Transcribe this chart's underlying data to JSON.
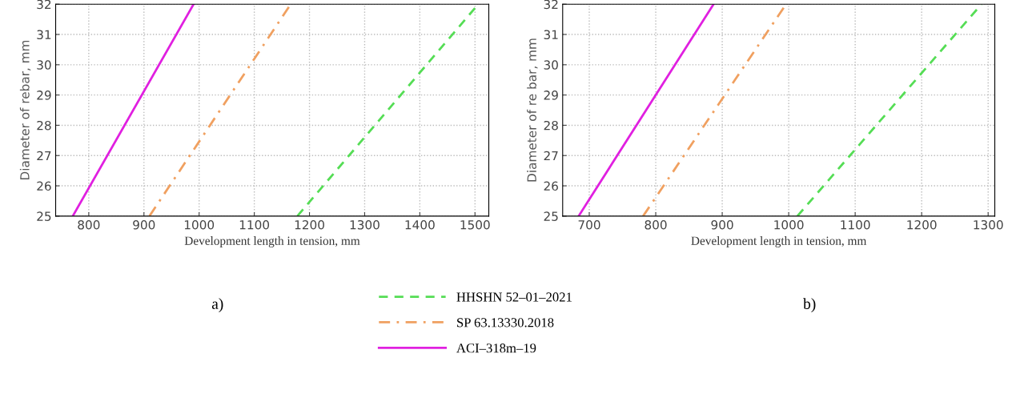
{
  "chart_data": [
    {
      "type": "line",
      "xlabel": "Development length in tension, mm",
      "ylabel": "Diameter of rebar, mm",
      "xlim": [
        740,
        1525
      ],
      "xticks": [
        800,
        900,
        1000,
        1100,
        1200,
        1300,
        1400,
        1500
      ],
      "ylim": [
        25,
        32
      ],
      "yticks": [
        25,
        26,
        27,
        28,
        29,
        30,
        31,
        32
      ],
      "grid": true,
      "legend": "bottom",
      "annotations": [
        "a)"
      ],
      "series": [
        {
          "name": "HHSHN 52–01–2021",
          "color": "#55dd55",
          "line_style": "dashed",
          "x": [
            1178,
            1506
          ],
          "values": [
            25,
            32
          ]
        },
        {
          "name": "SP 63.13330.2018",
          "color": "#f0a060",
          "line_style": "dashdot",
          "x": [
            910,
            1166
          ],
          "values": [
            25,
            32
          ]
        },
        {
          "name": "ACI–318m–19",
          "color": "#e020e0",
          "line_style": "solid",
          "x": [
            771,
            990
          ],
          "values": [
            25,
            32
          ]
        }
      ]
    },
    {
      "type": "line",
      "xlabel": "Development length in tension, mm",
      "ylabel": "Diameter of re bar, mm",
      "xlim": [
        660,
        1310
      ],
      "xticks": [
        700,
        800,
        900,
        1000,
        1100,
        1200,
        1300
      ],
      "ylim": [
        25,
        32
      ],
      "yticks": [
        25,
        26,
        27,
        28,
        29,
        30,
        31,
        32
      ],
      "grid": true,
      "annotations": [
        "b)"
      ],
      "series": [
        {
          "color": "#55dd55",
          "line_style": "dashed",
          "x": [
            1013,
            1290
          ],
          "values": [
            25,
            32
          ]
        },
        {
          "color": "#f0a060",
          "line_style": "dashdot",
          "x": [
            781,
            996
          ],
          "values": [
            25,
            32
          ]
        },
        {
          "color": "#e020e0",
          "line_style": "solid",
          "x": [
            684,
            887
          ],
          "values": [
            25,
            32
          ]
        }
      ]
    }
  ]
}
